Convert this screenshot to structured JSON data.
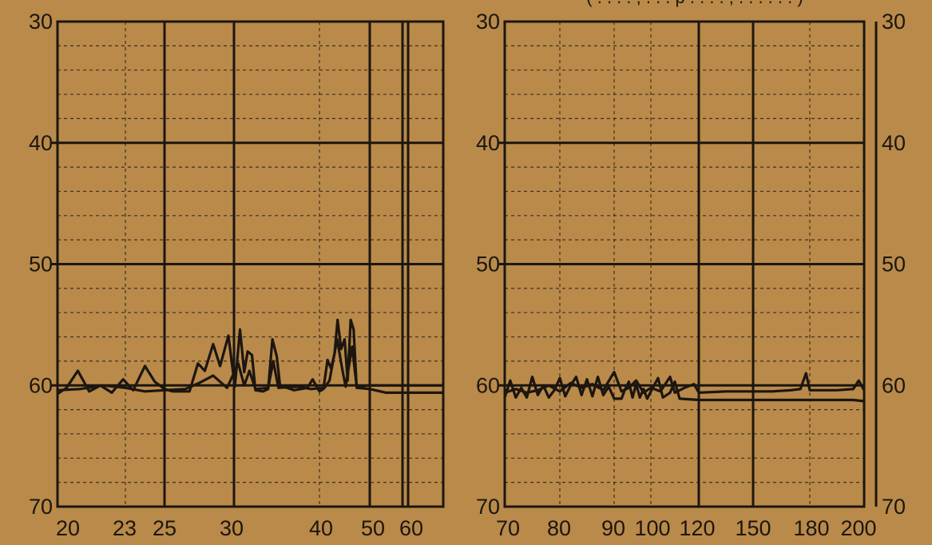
{
  "colors": {
    "paper": "#b98a4a",
    "ink": "#1c1610"
  },
  "header_fragment": "( . . . . , . . . p . . . . , . . . . . . )",
  "chart_data": [
    {
      "type": "line",
      "title": "",
      "xlabel": "",
      "ylabel": "",
      "ylim": [
        70,
        30
      ],
      "y_inverted": true,
      "yticks": [
        "30",
        "40",
        "50",
        "60",
        "70"
      ],
      "xticks": [
        "20",
        "23",
        "25",
        "30",
        "40",
        "50",
        "60"
      ],
      "grid": true,
      "series": [
        {
          "values": [
            [
              20,
              60.7
            ],
            [
              20.4,
              60.2
            ],
            [
              20.9,
              58.8
            ],
            [
              21.4,
              60.5
            ],
            [
              21.9,
              60.0
            ],
            [
              22.4,
              60.6
            ],
            [
              22.9,
              59.5
            ],
            [
              23.4,
              60.4
            ],
            [
              24.0,
              58.4
            ],
            [
              24.5,
              59.7
            ],
            [
              25.0,
              60.3
            ],
            [
              25.6,
              60.5
            ],
            [
              26.2,
              60.5
            ],
            [
              26.8,
              60.5
            ],
            [
              27.4,
              58.2
            ],
            [
              27.9,
              58.8
            ],
            [
              28.5,
              56.6
            ],
            [
              29.0,
              58.4
            ],
            [
              29.6,
              55.9
            ],
            [
              30.1,
              60.1
            ],
            [
              30.7,
              55.4
            ],
            [
              31.2,
              58.9
            ],
            [
              31.6,
              57.2
            ],
            [
              32.1,
              57.5
            ],
            [
              32.5,
              60.4
            ],
            [
              33.4,
              60.5
            ],
            [
              34.0,
              60.3
            ],
            [
              34.5,
              56.2
            ],
            [
              35.0,
              57.6
            ],
            [
              35.4,
              60.1
            ],
            [
              36.2,
              60.2
            ],
            [
              37.0,
              60.4
            ],
            [
              37.8,
              60.3
            ],
            [
              38.6,
              60.2
            ],
            [
              39.2,
              59.5
            ],
            [
              40.0,
              60.5
            ],
            [
              40.8,
              60.3
            ],
            [
              41.6,
              57.9
            ],
            [
              42.3,
              58.6
            ],
            [
              43.0,
              57.4
            ],
            [
              43.6,
              54.6
            ],
            [
              44.3,
              57.0
            ],
            [
              45.0,
              56.2
            ],
            [
              45.6,
              59.6
            ],
            [
              46.2,
              54.6
            ],
            [
              46.8,
              55.4
            ],
            [
              47.4,
              60.2
            ],
            [
              50.0,
              60.3
            ],
            [
              55.0,
              60.6
            ],
            [
              60.0,
              60.6
            ],
            [
              66.0,
              60.6
            ]
          ]
        },
        {
          "values": [
            [
              20,
              60.4
            ],
            [
              21.0,
              60.3
            ],
            [
              22.0,
              60.0
            ],
            [
              23.0,
              60.2
            ],
            [
              24.0,
              60.5
            ],
            [
              25.0,
              60.4
            ],
            [
              26.5,
              60.3
            ],
            [
              27.5,
              59.8
            ],
            [
              28.5,
              59.2
            ],
            [
              29.5,
              60.2
            ],
            [
              30.5,
              58.2
            ],
            [
              31.2,
              60.0
            ],
            [
              31.8,
              58.8
            ],
            [
              32.5,
              60.3
            ],
            [
              34.0,
              60.2
            ],
            [
              34.6,
              58.0
            ],
            [
              35.2,
              60.2
            ],
            [
              37.5,
              60.1
            ],
            [
              39.0,
              60.3
            ],
            [
              41.0,
              60.2
            ],
            [
              42.0,
              59.6
            ],
            [
              43.5,
              56.2
            ],
            [
              44.5,
              58.6
            ],
            [
              45.2,
              60.1
            ],
            [
              46.5,
              56.8
            ],
            [
              47.4,
              60.1
            ],
            [
              50.0,
              60.0
            ],
            [
              55.0,
              60.0
            ],
            [
              60.0,
              60.0
            ],
            [
              66.0,
              60.0
            ]
          ]
        }
      ]
    },
    {
      "type": "line",
      "title": "",
      "xlabel": "",
      "ylabel": "",
      "ylim": [
        70,
        30
      ],
      "y_inverted": true,
      "yticks": [
        "30",
        "40",
        "50",
        "60",
        "70"
      ],
      "right_yticks": [
        "30",
        "40",
        "50",
        "60",
        "70"
      ],
      "xticks": [
        "70",
        "80",
        "90",
        "100",
        "120",
        "150",
        "180",
        "200"
      ],
      "grid": true,
      "series": [
        {
          "values": [
            [
              70,
              61.0
            ],
            [
              71,
              59.6
            ],
            [
              72,
              61.0
            ],
            [
              73,
              60.2
            ],
            [
              74,
              61.0
            ],
            [
              75,
              59.3
            ],
            [
              76,
              60.8
            ],
            [
              77,
              60.0
            ],
            [
              78,
              61.0
            ],
            [
              79,
              60.4
            ],
            [
              80,
              59.4
            ],
            [
              81,
              60.9
            ],
            [
              82,
              60.0
            ],
            [
              83,
              59.3
            ],
            [
              84,
              60.8
            ],
            [
              85,
              59.5
            ],
            [
              86,
              60.9
            ],
            [
              87,
              59.3
            ],
            [
              88,
              60.8
            ],
            [
              89,
              60.1
            ],
            [
              90,
              61.1
            ],
            [
              92,
              61.1
            ],
            [
              93,
              60.3
            ],
            [
              94,
              59.7
            ],
            [
              95,
              61.0
            ],
            [
              96,
              59.9
            ],
            [
              97,
              61.0
            ],
            [
              98,
              60.3
            ],
            [
              99,
              61.1
            ],
            [
              100,
              60.5
            ],
            [
              103,
              59.4
            ],
            [
              105,
              61.0
            ],
            [
              108,
              60.6
            ],
            [
              110,
              59.7
            ],
            [
              112,
              61.1
            ],
            [
              120,
              61.2
            ],
            [
              135,
              61.2
            ],
            [
              150,
              61.2
            ],
            [
              165,
              61.2
            ],
            [
              175,
              61.2
            ],
            [
              180,
              61.2
            ],
            [
              190,
              61.2
            ],
            [
              196,
              61.2
            ],
            [
              200,
              61.3
            ]
          ]
        },
        {
          "values": [
            [
              70,
              60.6
            ],
            [
              72,
              60.3
            ],
            [
              74,
              60.6
            ],
            [
              76,
              60.4
            ],
            [
              78,
              60.0
            ],
            [
              80,
              60.5
            ],
            [
              82,
              59.8
            ],
            [
              84,
              60.2
            ],
            [
              86,
              59.9
            ],
            [
              88,
              60.4
            ],
            [
              90,
              58.9
            ],
            [
              92,
              60.5
            ],
            [
              94,
              60.2
            ],
            [
              96,
              59.6
            ],
            [
              98,
              60.6
            ],
            [
              100,
              60.2
            ],
            [
              104,
              60.5
            ],
            [
              108,
              59.3
            ],
            [
              110,
              60.6
            ],
            [
              114,
              60.2
            ],
            [
              118,
              59.9
            ],
            [
              120,
              60.6
            ],
            [
              135,
              60.5
            ],
            [
              150,
              60.5
            ],
            [
              160,
              60.5
            ],
            [
              170,
              60.4
            ],
            [
              175,
              60.3
            ],
            [
              178,
              59.0
            ],
            [
              180,
              60.4
            ],
            [
              190,
              60.4
            ],
            [
              196,
              60.3
            ],
            [
              198,
              59.6
            ],
            [
              200,
              60.4
            ]
          ]
        }
      ]
    }
  ]
}
